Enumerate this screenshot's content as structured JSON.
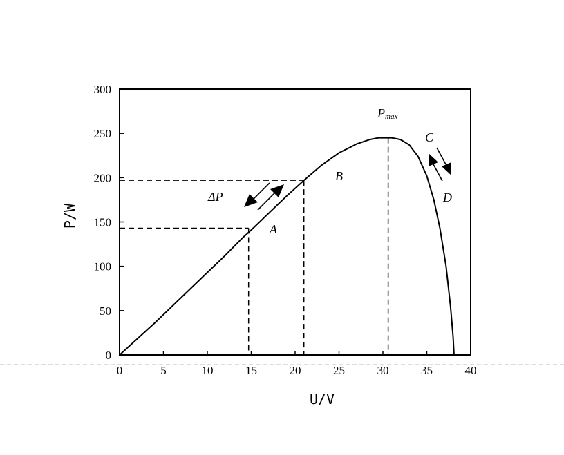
{
  "chart_data": {
    "type": "line",
    "xlabel": "U/V",
    "ylabel": "P/W",
    "xlim": [
      0,
      40
    ],
    "ylim": [
      0,
      300
    ],
    "x_ticks": [
      "0",
      "5",
      "10",
      "15",
      "20",
      "25",
      "30",
      "35",
      "40"
    ],
    "y_ticks": [
      "0",
      "50",
      "100",
      "150",
      "200",
      "250",
      "300"
    ],
    "grid": false,
    "series": [
      {
        "points": [
          [
            0,
            0
          ],
          [
            2,
            18
          ],
          [
            4,
            36
          ],
          [
            6,
            55
          ],
          [
            8,
            74
          ],
          [
            10,
            93
          ],
          [
            12,
            112
          ],
          [
            14,
            132
          ],
          [
            15,
            141
          ],
          [
            17,
            160
          ],
          [
            19,
            179
          ],
          [
            21,
            197
          ],
          [
            23,
            214
          ],
          [
            25,
            228
          ],
          [
            27,
            238
          ],
          [
            28.5,
            243
          ],
          [
            29.5,
            245
          ],
          [
            31,
            245
          ],
          [
            32,
            243
          ],
          [
            33,
            237
          ],
          [
            34,
            224
          ],
          [
            35,
            202
          ],
          [
            35.8,
            175
          ],
          [
            36.5,
            143
          ],
          [
            37.2,
            100
          ],
          [
            37.7,
            55
          ],
          [
            38,
            20
          ],
          [
            38.1,
            0
          ]
        ]
      }
    ],
    "reference_points": {
      "A": [
        14.7,
        143
      ],
      "B": [
        21,
        197
      ],
      "Pmax": [
        30.6,
        245
      ]
    },
    "annotations": {
      "A": "A",
      "B": "B",
      "C": "C",
      "D": "D",
      "pmax_main": "P",
      "pmax_sub": "max",
      "delta_p": "ΔP"
    }
  }
}
